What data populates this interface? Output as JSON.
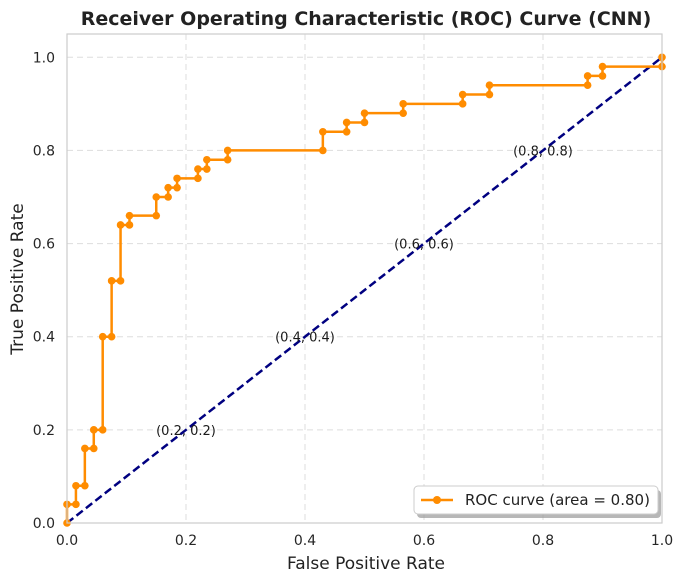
{
  "chart_data": {
    "type": "line",
    "title": "Receiver Operating Characteristic (ROC) Curve (CNN)",
    "xlabel": "False Positive Rate",
    "ylabel": "True Positive Rate",
    "xlim": [
      0,
      1
    ],
    "ylim": [
      0,
      1.05
    ],
    "x_ticks": [
      "0.0",
      "0.2",
      "0.4",
      "0.6",
      "0.8",
      "1.0"
    ],
    "y_ticks": [
      "0.0",
      "0.2",
      "0.4",
      "0.6",
      "0.8",
      "1.0"
    ],
    "grid": true,
    "legend_position": "lower-right",
    "series": [
      {
        "name": "ROC curve (area = 0.80)",
        "color": "#ff8c00",
        "marker": "circle",
        "style": "solid",
        "x": [
          0.0,
          0.0,
          0.015,
          0.015,
          0.03,
          0.03,
          0.045,
          0.045,
          0.06,
          0.06,
          0.075,
          0.075,
          0.09,
          0.09,
          0.105,
          0.105,
          0.15,
          0.15,
          0.17,
          0.17,
          0.185,
          0.185,
          0.22,
          0.22,
          0.235,
          0.235,
          0.27,
          0.27,
          0.43,
          0.43,
          0.47,
          0.47,
          0.5,
          0.5,
          0.565,
          0.565,
          0.665,
          0.665,
          0.71,
          0.71,
          0.875,
          0.875,
          0.9,
          0.9,
          1.0,
          1.0
        ],
        "y": [
          0.0,
          0.04,
          0.04,
          0.08,
          0.08,
          0.16,
          0.16,
          0.2,
          0.2,
          0.4,
          0.4,
          0.52,
          0.52,
          0.64,
          0.64,
          0.66,
          0.66,
          0.7,
          0.7,
          0.72,
          0.72,
          0.74,
          0.74,
          0.76,
          0.76,
          0.78,
          0.78,
          0.8,
          0.8,
          0.84,
          0.84,
          0.86,
          0.86,
          0.88,
          0.88,
          0.9,
          0.9,
          0.92,
          0.92,
          0.94,
          0.94,
          0.96,
          0.96,
          0.98,
          0.98,
          1.0
        ]
      },
      {
        "name": "",
        "color": "#000080",
        "marker": "none",
        "style": "dashed",
        "x": [
          0,
          1
        ],
        "y": [
          0,
          1
        ]
      }
    ],
    "annotations": [
      {
        "text": "(0.2, 0.2)",
        "x": 0.2,
        "y": 0.2
      },
      {
        "text": "(0.4, 0.4)",
        "x": 0.4,
        "y": 0.4
      },
      {
        "text": "(0.6, 0.6)",
        "x": 0.6,
        "y": 0.6
      },
      {
        "text": "(0.8, 0.8)",
        "x": 0.8,
        "y": 0.8
      }
    ]
  }
}
